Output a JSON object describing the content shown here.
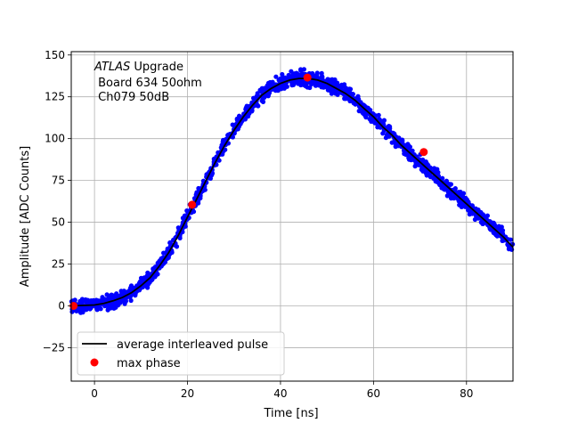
{
  "chart_data": {
    "type": "scatter",
    "title": "",
    "xlabel": "Time [ns]",
    "ylabel": "Amplitude [ADC Counts]",
    "xlim": [
      -5,
      90
    ],
    "ylim": [
      -45,
      152
    ],
    "xticks": [
      0,
      20,
      40,
      60,
      80
    ],
    "yticks": [
      -25,
      0,
      25,
      50,
      75,
      100,
      125,
      150
    ],
    "grid": true,
    "legend_position": "lower-left",
    "annotation": {
      "italic": "ATLAS",
      "upgrade": " Upgrade",
      "line2": " Board 634 50ohm",
      "line3": " Ch079 50dB"
    },
    "series": [
      {
        "name": "average interleaved pulse",
        "kind": "line",
        "color": "#000000",
        "x": [
          -5,
          0,
          2,
          4,
          6,
          8,
          10,
          12,
          14,
          16,
          18,
          20,
          22,
          24,
          26,
          28,
          30,
          32,
          34,
          36,
          38,
          40,
          42,
          44,
          46,
          48,
          50,
          52,
          54,
          56,
          58,
          60,
          62,
          64,
          66,
          68,
          70,
          72,
          74,
          76,
          78,
          80,
          82,
          84,
          86,
          88,
          90
        ],
        "y": [
          0,
          0.5,
          1.5,
          3,
          5,
          8,
          12,
          17,
          24,
          32,
          42,
          53,
          64,
          75,
          86,
          96,
          105,
          113,
          120,
          126,
          130,
          133,
          135,
          136,
          136,
          135,
          133,
          130,
          127,
          123,
          118,
          113,
          107,
          102,
          96,
          91,
          86,
          81,
          76,
          71,
          66,
          61,
          56,
          51,
          46,
          41,
          35
        ]
      },
      {
        "name": "",
        "kind": "scatter-samples",
        "color": "#0000ff",
        "note_on_values": "dense ADC samples scattered about the average pulse, spread about ±5 ADC counts"
      },
      {
        "name": "max phase",
        "kind": "scatter",
        "color": "#ff0000",
        "x": [
          -4.5,
          21,
          45.8,
          70.8
        ],
        "y": [
          0,
          60.5,
          136.5,
          92
        ]
      }
    ]
  }
}
